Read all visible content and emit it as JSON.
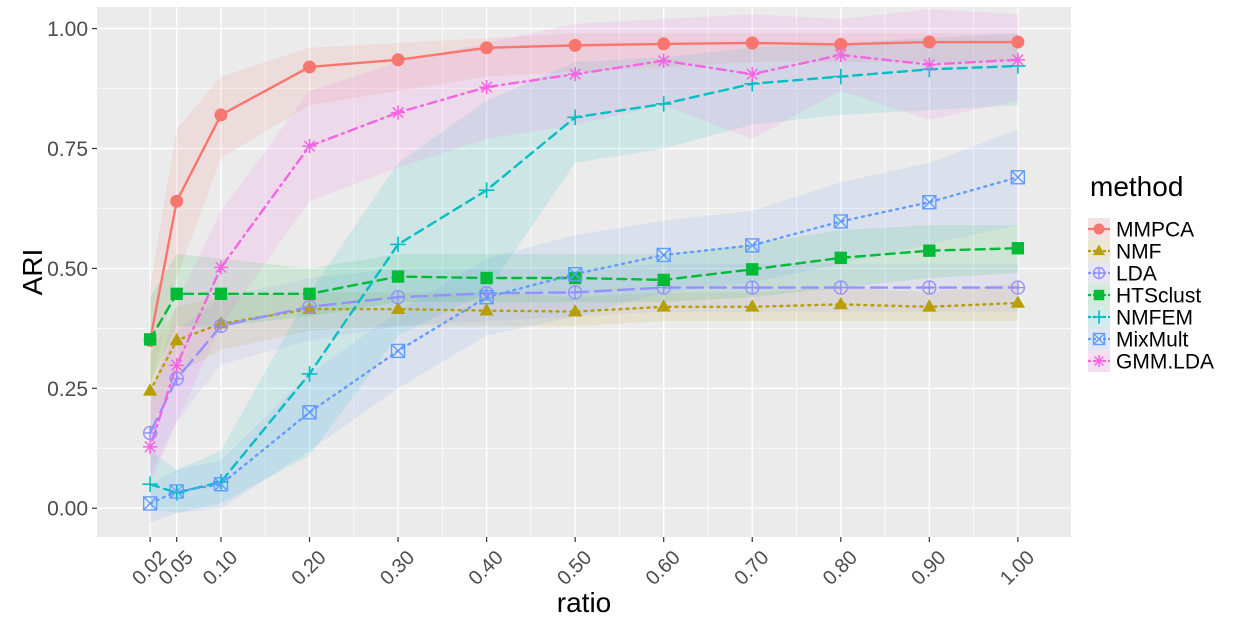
{
  "chart_data": {
    "type": "line",
    "title": "",
    "xlabel": "ratio",
    "ylabel": "ARI",
    "x": [
      0.02,
      0.05,
      0.1,
      0.2,
      0.3,
      0.4,
      0.5,
      0.6,
      0.7,
      0.8,
      0.9,
      1.0
    ],
    "x_tick_labels": [
      "0.02",
      "0.05",
      "0.10",
      "0.20",
      "0.30",
      "0.40",
      "0.50",
      "0.60",
      "0.70",
      "0.80",
      "0.90",
      "1.00"
    ],
    "y_ticks": [
      0.0,
      0.25,
      0.5,
      0.75,
      1.0
    ],
    "y_tick_labels": [
      "0.00",
      "0.25",
      "0.50",
      "0.75",
      "1.00"
    ],
    "xlim": [
      -0.04,
      1.06
    ],
    "ylim": [
      -0.06,
      1.045
    ],
    "grid": true,
    "legend_title": "method",
    "legend_position": "right",
    "series": [
      {
        "name": "MMPCA",
        "color": "#F8766D",
        "shape": "circle",
        "dash": "solid",
        "values": [
          0.35,
          0.64,
          0.82,
          0.92,
          0.935,
          0.96,
          0.965,
          0.968,
          0.97,
          0.967,
          0.972,
          0.972
        ],
        "lower": [
          0.25,
          0.48,
          0.73,
          0.84,
          0.87,
          0.9,
          0.91,
          0.92,
          0.93,
          0.93,
          0.93,
          0.93
        ],
        "upper": [
          0.46,
          0.79,
          0.9,
          0.96,
          0.97,
          0.98,
          0.99,
          0.99,
          0.99,
          0.99,
          0.99,
          0.99
        ]
      },
      {
        "name": "NMF",
        "color": "#B79F00",
        "shape": "triangle",
        "dash": "dotted",
        "values": [
          0.245,
          0.35,
          0.385,
          0.415,
          0.415,
          0.412,
          0.41,
          0.42,
          0.42,
          0.425,
          0.42,
          0.428
        ],
        "lower": [
          0.17,
          0.28,
          0.33,
          0.37,
          0.38,
          0.38,
          0.38,
          0.39,
          0.39,
          0.39,
          0.39,
          0.39
        ],
        "upper": [
          0.32,
          0.42,
          0.44,
          0.45,
          0.45,
          0.45,
          0.44,
          0.45,
          0.45,
          0.46,
          0.45,
          0.47
        ]
      },
      {
        "name": "LDA",
        "color": "#9590FF",
        "shape": "circle-plus",
        "dash": "longdash",
        "values": [
          0.157,
          0.27,
          0.38,
          0.42,
          0.44,
          0.448,
          0.45,
          0.46,
          0.46,
          0.46,
          0.46,
          0.46
        ],
        "lower": [
          0.07,
          0.18,
          0.3,
          0.35,
          0.38,
          0.39,
          0.4,
          0.41,
          0.41,
          0.41,
          0.41,
          0.41
        ],
        "upper": [
          0.25,
          0.37,
          0.44,
          0.48,
          0.5,
          0.5,
          0.5,
          0.51,
          0.51,
          0.51,
          0.51,
          0.51
        ]
      },
      {
        "name": "HTSclust",
        "color": "#00BA38",
        "shape": "square",
        "dash": "dashed",
        "values": [
          0.352,
          0.447,
          0.447,
          0.447,
          0.483,
          0.48,
          0.48,
          0.476,
          0.498,
          0.522,
          0.537,
          0.542
        ],
        "lower": [
          0.26,
          0.38,
          0.38,
          0.4,
          0.43,
          0.43,
          0.43,
          0.43,
          0.44,
          0.46,
          0.48,
          0.49
        ],
        "upper": [
          0.44,
          0.53,
          0.52,
          0.5,
          0.53,
          0.53,
          0.53,
          0.53,
          0.55,
          0.58,
          0.59,
          0.59
        ]
      },
      {
        "name": "NMFEM",
        "color": "#00BFC4",
        "shape": "plus",
        "dash": "dashed",
        "values": [
          0.05,
          0.032,
          0.055,
          0.28,
          0.55,
          0.663,
          0.815,
          0.843,
          0.885,
          0.9,
          0.915,
          0.922
        ],
        "lower": [
          0.0,
          -0.01,
          0.01,
          0.11,
          0.36,
          0.45,
          0.72,
          0.75,
          0.8,
          0.82,
          0.83,
          0.84
        ],
        "upper": [
          0.12,
          0.08,
          0.12,
          0.45,
          0.72,
          0.85,
          0.93,
          0.94,
          0.96,
          0.97,
          0.98,
          0.99
        ]
      },
      {
        "name": "MixMult",
        "color": "#619CFF",
        "shape": "square-x",
        "dash": "dotted",
        "values": [
          0.01,
          0.035,
          0.05,
          0.2,
          0.328,
          0.44,
          0.488,
          0.528,
          0.548,
          0.598,
          0.638,
          0.69
        ],
        "lower": [
          -0.03,
          -0.01,
          0.0,
          0.12,
          0.25,
          0.36,
          0.4,
          0.45,
          0.47,
          0.51,
          0.55,
          0.59
        ],
        "upper": [
          0.05,
          0.08,
          0.1,
          0.28,
          0.41,
          0.52,
          0.57,
          0.6,
          0.62,
          0.68,
          0.72,
          0.79
        ]
      },
      {
        "name": "GMM.LDA",
        "color": "#F564E3",
        "shape": "asterisk",
        "dash": "dotdash",
        "values": [
          0.128,
          0.298,
          0.502,
          0.755,
          0.825,
          0.878,
          0.905,
          0.933,
          0.905,
          0.945,
          0.925,
          0.935
        ],
        "lower": [
          0.05,
          0.18,
          0.38,
          0.64,
          0.71,
          0.77,
          0.8,
          0.84,
          0.77,
          0.87,
          0.81,
          0.85
        ],
        "upper": [
          0.22,
          0.43,
          0.62,
          0.87,
          0.93,
          0.97,
          1.01,
          1.02,
          1.03,
          1.02,
          1.04,
          1.03
        ]
      }
    ]
  }
}
